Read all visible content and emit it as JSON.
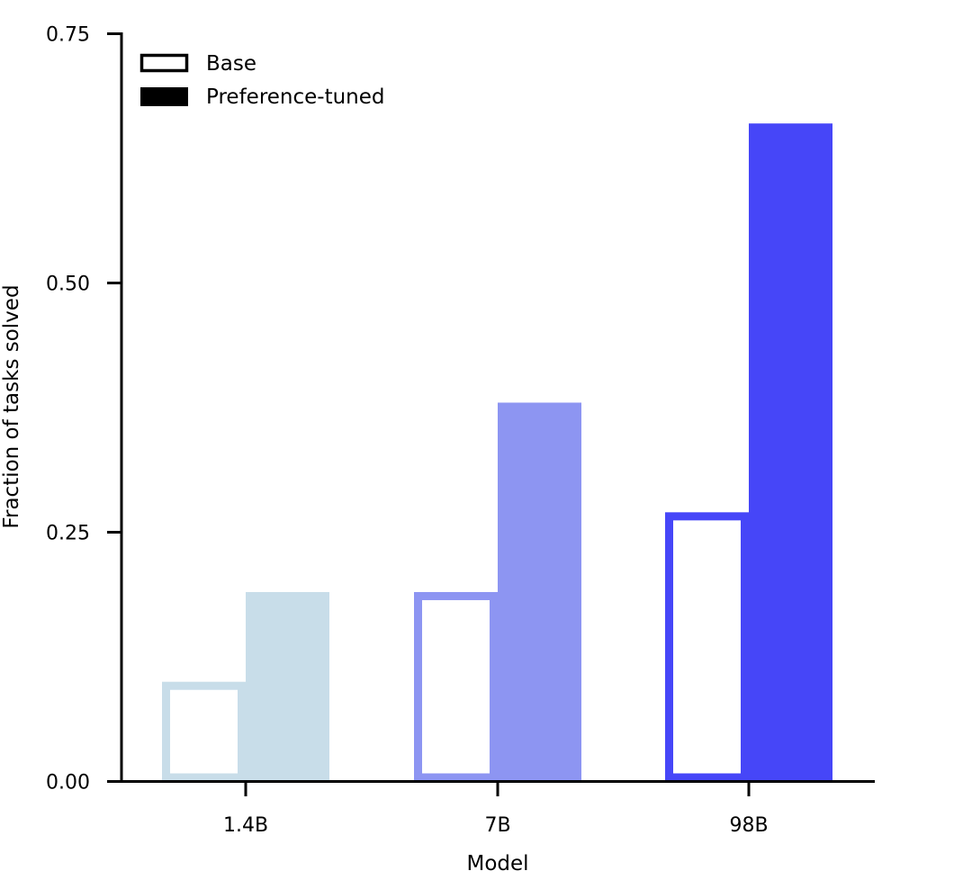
{
  "chart_data": {
    "type": "bar",
    "title": "",
    "xlabel": "Model",
    "ylabel": "Fraction of tasks solved",
    "categories": [
      "1.4B",
      "7B",
      "98B"
    ],
    "ylim": [
      0,
      0.75
    ],
    "yticks": [
      "0.00",
      "0.25",
      "0.50",
      "0.75"
    ],
    "category_colors": [
      "#c8dde9",
      "#8d95f2",
      "#4646f8"
    ],
    "series": [
      {
        "name": "Base",
        "style": "outline",
        "values": [
          0.1,
          0.19,
          0.27
        ]
      },
      {
        "name": "Preference-tuned",
        "style": "filled",
        "values": [
          0.19,
          0.38,
          0.66
        ]
      }
    ],
    "legend": {
      "placement": "top-left",
      "items": [
        "Base",
        "Preference-tuned"
      ]
    },
    "grid": false
  }
}
